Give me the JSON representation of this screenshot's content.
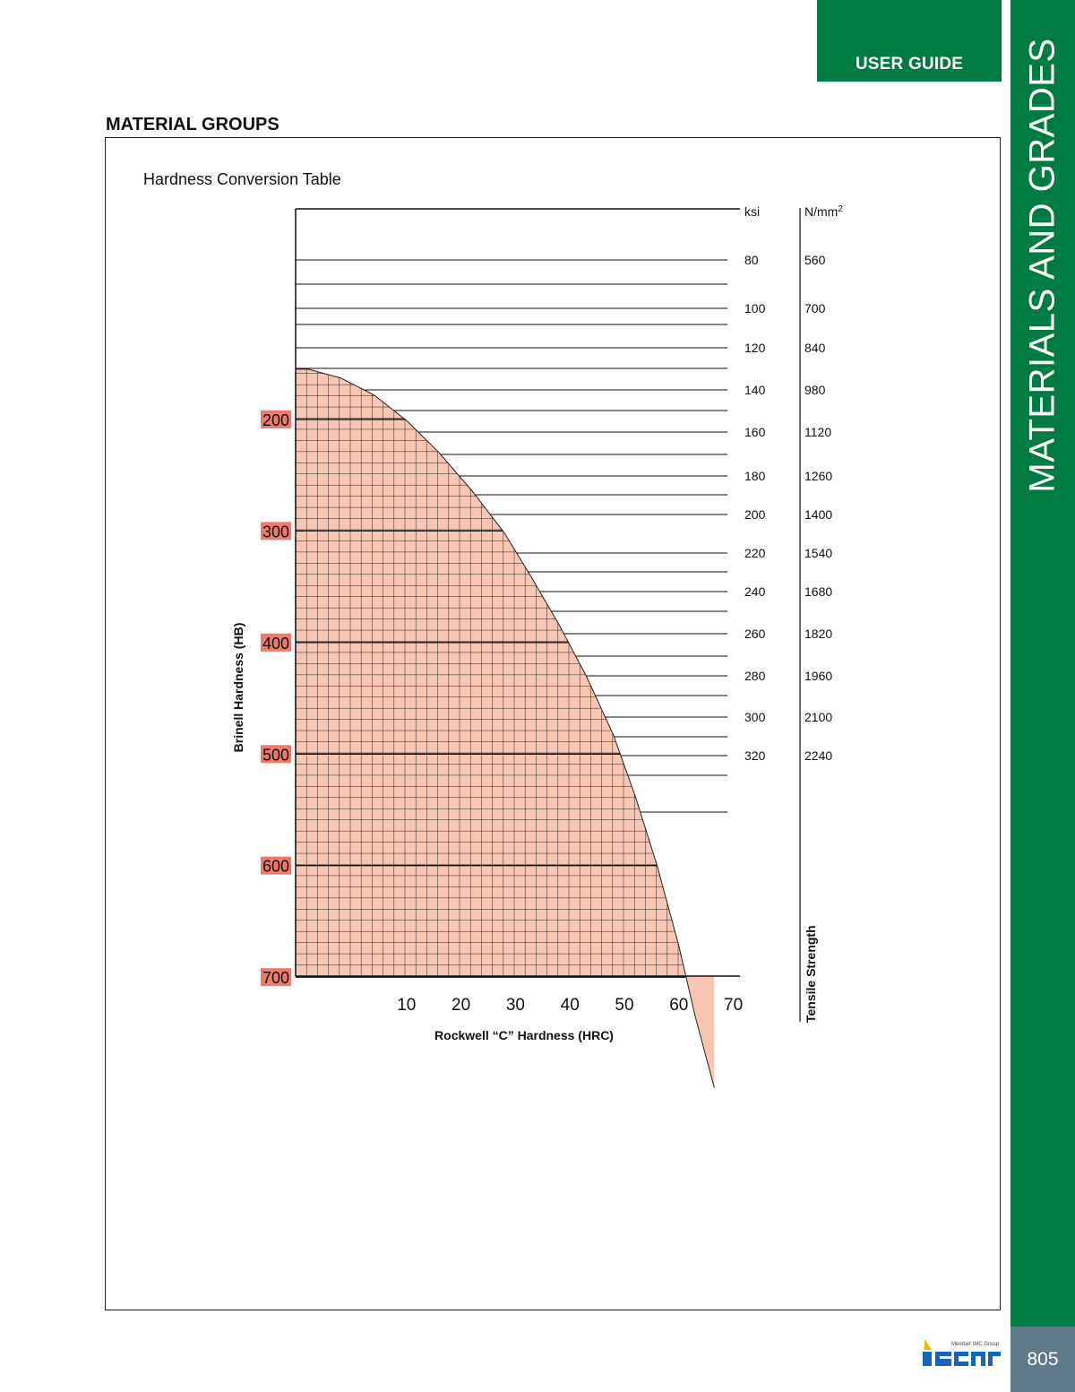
{
  "header": {
    "tab_label": "USER GUIDE",
    "side_label": "MATERIALS AND GRADES",
    "page_number": "805"
  },
  "section": {
    "title": "MATERIAL GROUPS"
  },
  "footer": {
    "logo_caption": "Member IMC Group",
    "logo_name": "iscar-logo"
  },
  "colors": {
    "brand_green": "#007c42",
    "page_tab": "#5f7a8a",
    "fill": "#f9c6b4",
    "label_box": "#ee7a6a"
  },
  "chart_data": {
    "type": "area",
    "title": "Hardness Conversion Table",
    "xlabel": "Rockwell “C” Hardness (HRC)",
    "ylabel": "Brinell Hardness (HB)",
    "y2label": "Tensile Strength",
    "x_ticks": [
      "10",
      "20",
      "30",
      "40",
      "50",
      "60",
      "70"
    ],
    "y_ticks": [
      "200",
      "300",
      "400",
      "500",
      "600",
      "700"
    ],
    "ylim": [
      800,
      100
    ],
    "ksi_unit": "ksi",
    "nmm_unit": "N/mm",
    "nmm_sup": "2",
    "tensile_ksi": [
      "80",
      "100",
      "120",
      "140",
      "160",
      "180",
      "200",
      "220",
      "240",
      "260",
      "280",
      "300",
      "320"
    ],
    "tensile_nmm2": [
      "560",
      "700",
      "840",
      "980",
      "1120",
      "1260",
      "1400",
      "1540",
      "1680",
      "1820",
      "1960",
      "2100",
      "2240"
    ],
    "curve_x": [
      -8,
      -2,
      4,
      10,
      16,
      22,
      28,
      33,
      38,
      43,
      48,
      52,
      56,
      60,
      63,
      66.5
    ],
    "curve_hb": [
      155,
      163,
      178,
      201,
      230,
      264,
      302,
      342,
      384,
      430,
      483,
      538,
      600,
      672,
      735,
      799
    ],
    "grid": true
  }
}
